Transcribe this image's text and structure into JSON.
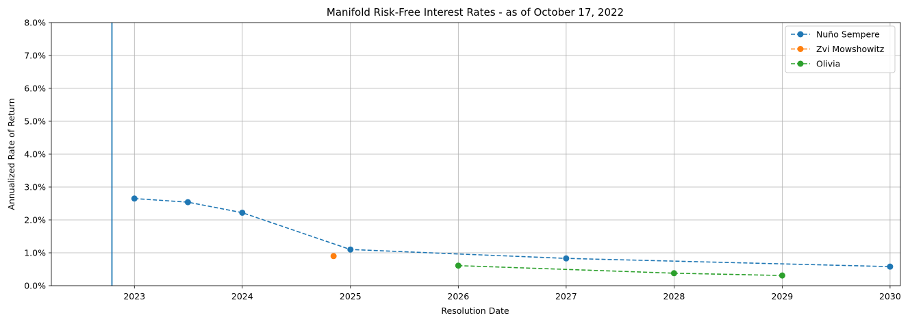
{
  "chart_data": {
    "type": "line",
    "title": "Manifold Risk-Free Interest Rates - as of October 17, 2022",
    "xlabel": "Resolution Date",
    "ylabel": "Annualized Rate of Return",
    "xlim": [
      "2022-03-26",
      "2030-02-05"
    ],
    "ylim": [
      0,
      0.08
    ],
    "grid": true,
    "legend_position": "top-right",
    "x_ticks": [
      "2023",
      "2024",
      "2025",
      "2026",
      "2027",
      "2028",
      "2029",
      "2030"
    ],
    "x_tick_dates": [
      "2023-01-01",
      "2024-01-01",
      "2025-01-01",
      "2026-01-01",
      "2027-01-01",
      "2028-01-01",
      "2029-01-01",
      "2030-01-01"
    ],
    "y_ticks": [
      0,
      0.01,
      0.02,
      0.03,
      0.04,
      0.05,
      0.06,
      0.07,
      0.08
    ],
    "y_tick_labels": [
      "0.0%",
      "1.0%",
      "2.0%",
      "3.0%",
      "4.0%",
      "5.0%",
      "6.0%",
      "7.0%",
      "8.0%"
    ],
    "vertical_marker": {
      "date": "2022-10-17",
      "color": "#1f77b4"
    },
    "series": [
      {
        "name": "Nuño Sempere",
        "color": "#1f77b4",
        "points": [
          {
            "x": "2023-01-01",
            "y": 0.0265
          },
          {
            "x": "2023-07-01",
            "y": 0.0254
          },
          {
            "x": "2024-01-01",
            "y": 0.0222
          },
          {
            "x": "2025-01-01",
            "y": 0.011
          },
          {
            "x": "2027-01-01",
            "y": 0.0083
          },
          {
            "x": "2030-01-01",
            "y": 0.0058
          }
        ]
      },
      {
        "name": "Zvi Mowshowitz",
        "color": "#ff7f0e",
        "points": [
          {
            "x": "2024-11-05",
            "y": 0.009
          }
        ]
      },
      {
        "name": "Olivia",
        "color": "#2ca02c",
        "points": [
          {
            "x": "2026-01-01",
            "y": 0.0061
          },
          {
            "x": "2028-01-01",
            "y": 0.0038
          },
          {
            "x": "2029-01-01",
            "y": 0.0031
          }
        ]
      }
    ]
  }
}
